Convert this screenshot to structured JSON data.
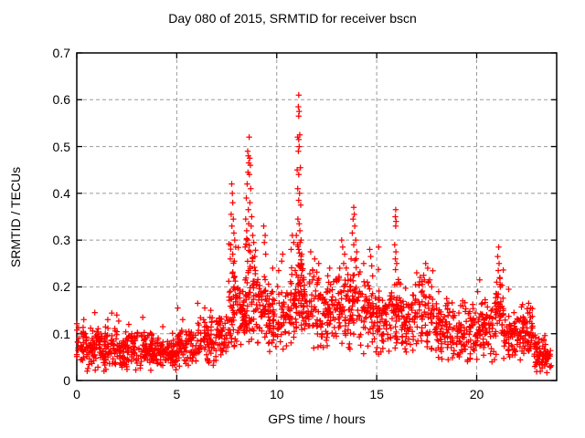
{
  "chart_data": {
    "type": "scatter",
    "title": "Day 080 of 2015, SRMTID for receiver bscn",
    "xlabel": "GPS time / hours",
    "ylabel": "SRMTID / TECUs",
    "xlim": [
      0,
      24
    ],
    "ylim": [
      0,
      0.7
    ],
    "xticks": [
      0,
      5,
      10,
      15,
      20
    ],
    "xtick_labels": [
      "0",
      "5",
      "10",
      "15",
      "20"
    ],
    "yticks": [
      0,
      0.1,
      0.2,
      0.3,
      0.4,
      0.5,
      0.6,
      0.7
    ],
    "ytick_labels": [
      "0",
      "0.1",
      "0.2",
      "0.3",
      "0.4",
      "0.5",
      "0.6",
      "0.7"
    ],
    "grid": true,
    "legend": null,
    "marker": {
      "shape": "plus",
      "color": "#ff0000",
      "size": 7
    },
    "colors": {
      "marker": "#ff0000",
      "grid": "#9b9b9b",
      "border": "#000000",
      "background": "#ffffff"
    },
    "series": [
      {
        "name": "SRMTID",
        "peak_points": [
          [
            0.35,
            0.13
          ],
          [
            0.9,
            0.145
          ],
          [
            1.55,
            0.13
          ],
          [
            1.75,
            0.144
          ],
          [
            2.0,
            0.14
          ],
          [
            2.1,
            0.127
          ],
          [
            2.6,
            0.12
          ],
          [
            3.3,
            0.135
          ],
          [
            4.3,
            0.115
          ],
          [
            5.05,
            0.155
          ],
          [
            5.3,
            0.13
          ],
          [
            6.05,
            0.165
          ],
          [
            6.4,
            0.155
          ],
          [
            6.7,
            0.15
          ],
          [
            7.68,
            0.26
          ],
          [
            7.7,
            0.29
          ],
          [
            7.72,
            0.355
          ],
          [
            7.75,
            0.42
          ],
          [
            7.76,
            0.33
          ],
          [
            7.78,
            0.4
          ],
          [
            7.8,
            0.38
          ],
          [
            7.8,
            0.27
          ],
          [
            7.83,
            0.345
          ],
          [
            7.86,
            0.315
          ],
          [
            7.88,
            0.255
          ],
          [
            7.9,
            0.3
          ],
          [
            7.95,
            0.285
          ],
          [
            8.42,
            0.285
          ],
          [
            8.45,
            0.345
          ],
          [
            8.48,
            0.39
          ],
          [
            8.5,
            0.32
          ],
          [
            8.52,
            0.42
          ],
          [
            8.55,
            0.49
          ],
          [
            8.55,
            0.3
          ],
          [
            8.56,
            0.445
          ],
          [
            8.58,
            0.48
          ],
          [
            8.58,
            0.365
          ],
          [
            8.6,
            0.465
          ],
          [
            8.6,
            0.335
          ],
          [
            8.62,
            0.52
          ],
          [
            8.63,
            0.44
          ],
          [
            8.65,
            0.475
          ],
          [
            8.66,
            0.38
          ],
          [
            8.68,
            0.46
          ],
          [
            8.68,
            0.275
          ],
          [
            8.7,
            0.41
          ],
          [
            8.72,
            0.33
          ],
          [
            8.75,
            0.35
          ],
          [
            8.78,
            0.255
          ],
          [
            8.8,
            0.31
          ],
          [
            8.85,
            0.295
          ],
          [
            8.9,
            0.265
          ],
          [
            9.35,
            0.33
          ],
          [
            9.38,
            0.295
          ],
          [
            9.42,
            0.31
          ],
          [
            9.45,
            0.27
          ],
          [
            9.8,
            0.24
          ],
          [
            10.1,
            0.235
          ],
          [
            10.25,
            0.255
          ],
          [
            10.3,
            0.27
          ],
          [
            10.72,
            0.28
          ],
          [
            10.78,
            0.31
          ],
          [
            10.85,
            0.295
          ],
          [
            10.98,
            0.31
          ],
          [
            11.02,
            0.45
          ],
          [
            11.04,
            0.29
          ],
          [
            11.05,
            0.52
          ],
          [
            11.05,
            0.41
          ],
          [
            11.06,
            0.345
          ],
          [
            11.08,
            0.585
          ],
          [
            11.08,
            0.49
          ],
          [
            11.1,
            0.61
          ],
          [
            11.1,
            0.565
          ],
          [
            11.1,
            0.515
          ],
          [
            11.1,
            0.44
          ],
          [
            11.1,
            0.385
          ],
          [
            11.1,
            0.28
          ],
          [
            11.12,
            0.575
          ],
          [
            11.12,
            0.5
          ],
          [
            11.12,
            0.335
          ],
          [
            11.14,
            0.4
          ],
          [
            11.15,
            0.525
          ],
          [
            11.16,
            0.32
          ],
          [
            11.18,
            0.455
          ],
          [
            11.2,
            0.375
          ],
          [
            11.22,
            0.3
          ],
          [
            11.25,
            0.27
          ],
          [
            11.7,
            0.275
          ],
          [
            11.9,
            0.26
          ],
          [
            12.1,
            0.25
          ],
          [
            12.65,
            0.24
          ],
          [
            13.15,
            0.24
          ],
          [
            13.25,
            0.3
          ],
          [
            13.3,
            0.285
          ],
          [
            13.35,
            0.25
          ],
          [
            13.4,
            0.27
          ],
          [
            13.72,
            0.26
          ],
          [
            13.78,
            0.315
          ],
          [
            13.82,
            0.345
          ],
          [
            13.85,
            0.37
          ],
          [
            13.85,
            0.29
          ],
          [
            13.88,
            0.355
          ],
          [
            13.9,
            0.33
          ],
          [
            13.95,
            0.3
          ],
          [
            14.0,
            0.275
          ],
          [
            14.35,
            0.25
          ],
          [
            14.65,
            0.28
          ],
          [
            14.7,
            0.265
          ],
          [
            14.75,
            0.245
          ],
          [
            15.1,
            0.285
          ],
          [
            15.9,
            0.29
          ],
          [
            15.93,
            0.35
          ],
          [
            15.93,
            0.26
          ],
          [
            15.95,
            0.365
          ],
          [
            15.95,
            0.33
          ],
          [
            15.96,
            0.275
          ],
          [
            15.97,
            0.34
          ],
          [
            16.0,
            0.25
          ],
          [
            17.0,
            0.23
          ],
          [
            17.35,
            0.225
          ],
          [
            17.45,
            0.25
          ],
          [
            17.55,
            0.24
          ],
          [
            17.65,
            0.215
          ],
          [
            17.75,
            0.2
          ],
          [
            18.1,
            0.19
          ],
          [
            18.5,
            0.175
          ],
          [
            18.6,
            0.165
          ],
          [
            19.2,
            0.16
          ],
          [
            19.3,
            0.17
          ],
          [
            20.05,
            0.19
          ],
          [
            20.15,
            0.215
          ],
          [
            21.0,
            0.21
          ],
          [
            21.05,
            0.265
          ],
          [
            21.08,
            0.235
          ],
          [
            21.1,
            0.285
          ],
          [
            21.12,
            0.25
          ],
          [
            21.15,
            0.22
          ],
          [
            21.18,
            0.2
          ],
          [
            21.6,
            0.195
          ],
          [
            22.6,
            0.165
          ],
          [
            22.65,
            0.145
          ],
          [
            22.7,
            0.155
          ]
        ],
        "cloud_profile": [
          [
            0.0,
            1.0,
            85,
            0.015,
            0.125
          ],
          [
            1.0,
            2.0,
            85,
            0.015,
            0.125
          ],
          [
            2.0,
            3.0,
            85,
            0.015,
            0.115
          ],
          [
            3.0,
            4.0,
            85,
            0.015,
            0.115
          ],
          [
            4.0,
            5.0,
            80,
            0.015,
            0.105
          ],
          [
            5.0,
            6.0,
            75,
            0.025,
            0.12
          ],
          [
            6.0,
            7.0,
            75,
            0.03,
            0.14
          ],
          [
            7.0,
            7.6,
            50,
            0.04,
            0.15
          ],
          [
            7.6,
            8.1,
            55,
            0.06,
            0.3
          ],
          [
            8.1,
            8.45,
            40,
            0.06,
            0.22
          ],
          [
            8.45,
            8.95,
            60,
            0.08,
            0.32
          ],
          [
            8.95,
            9.6,
            55,
            0.06,
            0.24
          ],
          [
            9.6,
            10.6,
            80,
            0.05,
            0.22
          ],
          [
            10.6,
            11.0,
            40,
            0.07,
            0.26
          ],
          [
            11.0,
            11.35,
            45,
            0.08,
            0.32
          ],
          [
            11.35,
            12.2,
            70,
            0.06,
            0.26
          ],
          [
            12.2,
            13.1,
            75,
            0.05,
            0.24
          ],
          [
            13.1,
            13.6,
            45,
            0.06,
            0.26
          ],
          [
            13.6,
            14.15,
            50,
            0.06,
            0.28
          ],
          [
            14.15,
            15.1,
            75,
            0.05,
            0.24
          ],
          [
            15.1,
            15.75,
            55,
            0.04,
            0.21
          ],
          [
            15.75,
            16.2,
            40,
            0.06,
            0.26
          ],
          [
            16.2,
            17.1,
            70,
            0.04,
            0.21
          ],
          [
            17.1,
            17.85,
            60,
            0.05,
            0.24
          ],
          [
            17.85,
            19.0,
            85,
            0.03,
            0.18
          ],
          [
            19.0,
            20.0,
            80,
            0.03,
            0.17
          ],
          [
            20.0,
            20.9,
            75,
            0.03,
            0.18
          ],
          [
            20.9,
            21.35,
            45,
            0.05,
            0.24
          ],
          [
            21.35,
            22.3,
            75,
            0.03,
            0.17
          ],
          [
            22.3,
            22.85,
            55,
            0.04,
            0.17
          ],
          [
            22.85,
            23.45,
            60,
            0.015,
            0.1
          ],
          [
            23.45,
            23.75,
            20,
            0.01,
            0.07
          ]
        ]
      }
    ]
  }
}
